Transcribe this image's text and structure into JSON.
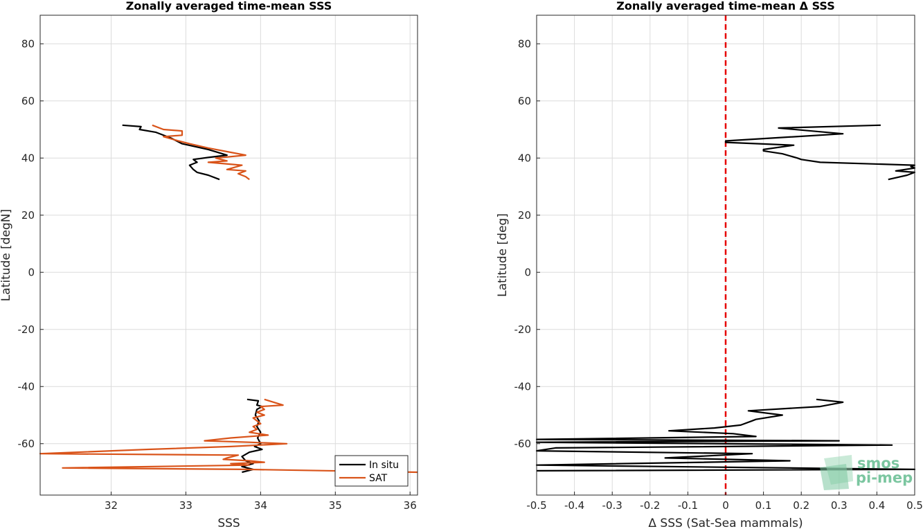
{
  "chart_data": [
    {
      "type": "line",
      "title": "Zonally averaged time-mean SSS",
      "xlabel": "SSS",
      "ylabel": "Latitude [degN]",
      "xlim": [
        31.05,
        36.1
      ],
      "ylim": [
        -78,
        90
      ],
      "xticks": [
        32,
        33,
        34,
        35,
        36
      ],
      "yticks": [
        -60,
        -40,
        -20,
        0,
        20,
        40,
        60,
        80
      ],
      "grid": true,
      "legend": "bottom-right",
      "series": [
        {
          "name": "In situ",
          "color": "#000000",
          "segments": [
            [
              [
                32.15,
                51.5
              ],
              [
                32.4,
                51
              ],
              [
                32.38,
                50
              ],
              [
                32.6,
                49
              ],
              [
                32.8,
                47
              ],
              [
                32.95,
                45
              ],
              [
                33.3,
                43
              ],
              [
                33.55,
                41
              ],
              [
                33.3,
                40.2
              ],
              [
                33.1,
                39.5
              ],
              [
                33.15,
                38.5
              ],
              [
                33.05,
                37.5
              ],
              [
                33.1,
                36
              ],
              [
                33.15,
                35
              ],
              [
                33.3,
                34
              ],
              [
                33.45,
                32.5
              ]
            ],
            [
              [
                33.82,
                -44.5
              ],
              [
                33.97,
                -45
              ],
              [
                33.95,
                -46.5
              ],
              [
                34.02,
                -47
              ],
              [
                33.95,
                -48
              ],
              [
                33.93,
                -50
              ],
              [
                33.98,
                -52
              ],
              [
                33.95,
                -54
              ],
              [
                34.0,
                -56
              ],
              [
                33.96,
                -58
              ],
              [
                34.0,
                -60
              ],
              [
                33.92,
                -61
              ],
              [
                34.02,
                -62
              ],
              [
                33.85,
                -63
              ],
              [
                33.75,
                -64.5
              ],
              [
                33.8,
                -66
              ],
              [
                33.9,
                -67
              ],
              [
                33.75,
                -68
              ],
              [
                33.9,
                -69
              ],
              [
                33.75,
                -70
              ]
            ]
          ]
        },
        {
          "name": "SAT",
          "color": "#d95319",
          "segments": [
            [
              [
                32.55,
                51.5
              ],
              [
                32.7,
                50
              ],
              [
                32.95,
                49.5
              ],
              [
                32.95,
                48
              ],
              [
                32.7,
                47.5
              ],
              [
                32.9,
                46
              ],
              [
                33.05,
                45
              ],
              [
                33.3,
                43.5
              ],
              [
                33.6,
                42
              ],
              [
                33.8,
                41
              ],
              [
                33.4,
                40
              ],
              [
                33.55,
                39
              ],
              [
                33.3,
                38.5
              ],
              [
                33.75,
                37.5
              ],
              [
                33.55,
                36
              ],
              [
                33.8,
                35.5
              ],
              [
                33.7,
                34.5
              ],
              [
                33.8,
                33.5
              ],
              [
                33.85,
                32.5
              ]
            ],
            [
              [
                34.05,
                -44.5
              ],
              [
                34.3,
                -46.5
              ],
              [
                34.0,
                -47
              ],
              [
                34.05,
                -48
              ],
              [
                33.95,
                -49
              ],
              [
                34.05,
                -50
              ],
              [
                33.9,
                -51
              ],
              [
                34.0,
                -53
              ],
              [
                33.9,
                -54
              ],
              [
                33.95,
                -55
              ],
              [
                33.85,
                -56
              ],
              [
                34.1,
                -57
              ],
              [
                33.6,
                -58
              ],
              [
                33.25,
                -59
              ],
              [
                33.85,
                -59.5
              ],
              [
                34.35,
                -60
              ],
              [
                33.6,
                -61
              ],
              [
                32.5,
                -62
              ],
              [
                31.05,
                -63.5
              ],
              [
                33.7,
                -64
              ],
              [
                33.55,
                -65
              ],
              [
                33.5,
                -65.5
              ],
              [
                33.85,
                -66
              ],
              [
                34.05,
                -66.5
              ],
              [
                33.6,
                -67
              ],
              [
                33.85,
                -67.5
              ],
              [
                31.35,
                -68.5
              ],
              [
                33.8,
                -69
              ],
              [
                36.1,
                -70
              ]
            ]
          ]
        }
      ]
    },
    {
      "type": "line",
      "title": "Zonally averaged time-mean Δ SSS",
      "xlabel": "Δ SSS (Sat-Sea mammals)",
      "ylabel": "Latitude [deg]",
      "xlim": [
        -0.5,
        0.5
      ],
      "ylim": [
        -78,
        90
      ],
      "xticks": [
        -0.5,
        -0.4,
        -0.3,
        -0.2,
        -0.1,
        0,
        0.1,
        0.2,
        0.3,
        0.4,
        0.5
      ],
      "xticklabels": [
        "-0.5",
        "-0.4",
        "-0.3",
        "-0.2",
        "-0.1",
        "0",
        "0.1",
        "0.2",
        "0.3",
        "0.4",
        "0.5"
      ],
      "yticks": [
        -60,
        -40,
        -20,
        0,
        20,
        40,
        60,
        80
      ],
      "grid": true,
      "reference_line": {
        "x": 0,
        "color": "#e60000",
        "style": "dashed"
      },
      "series": [
        {
          "color": "#000000",
          "segments": [
            [
              [
                0.41,
                51.5
              ],
              [
                0.14,
                50.5
              ],
              [
                0.31,
                48.5
              ],
              [
                0.0,
                46
              ],
              [
                0.0,
                45.5
              ],
              [
                0.18,
                44.5
              ],
              [
                0.1,
                43
              ],
              [
                0.1,
                42.5
              ],
              [
                0.15,
                41.5
              ],
              [
                0.19,
                40
              ],
              [
                0.2,
                39.5
              ],
              [
                0.25,
                38.5
              ],
              [
                0.5,
                37.5
              ],
              [
                0.49,
                37
              ],
              [
                0.5,
                36.5
              ],
              [
                0.45,
                35.5
              ],
              [
                0.5,
                35
              ],
              [
                0.48,
                34
              ],
              [
                0.43,
                32.5
              ]
            ],
            [
              [
                0.24,
                -44.5
              ],
              [
                0.31,
                -45.5
              ],
              [
                0.25,
                -47
              ],
              [
                0.06,
                -48.5
              ],
              [
                0.15,
                -50
              ],
              [
                0.08,
                -51.5
              ],
              [
                0.07,
                -52
              ],
              [
                0.04,
                -53.5
              ],
              [
                -0.03,
                -54.5
              ],
              [
                -0.15,
                -55.5
              ],
              [
                0.02,
                -56.5
              ],
              [
                0.08,
                -57.5
              ],
              [
                -0.5,
                -58.5
              ],
              [
                0.3,
                -59
              ],
              [
                -0.5,
                -59.5
              ],
              [
                0.44,
                -60.5
              ],
              [
                -0.45,
                -61.5
              ],
              [
                -0.5,
                -62.5
              ],
              [
                0.07,
                -63.5
              ],
              [
                -0.16,
                -65
              ],
              [
                0.17,
                -66
              ],
              [
                -0.5,
                -67.5
              ],
              [
                0.5,
                -69
              ],
              [
                -0.5,
                -69.5
              ]
            ]
          ]
        }
      ]
    }
  ],
  "logo": {
    "line1": "smos",
    "line2": "pi-mep"
  }
}
